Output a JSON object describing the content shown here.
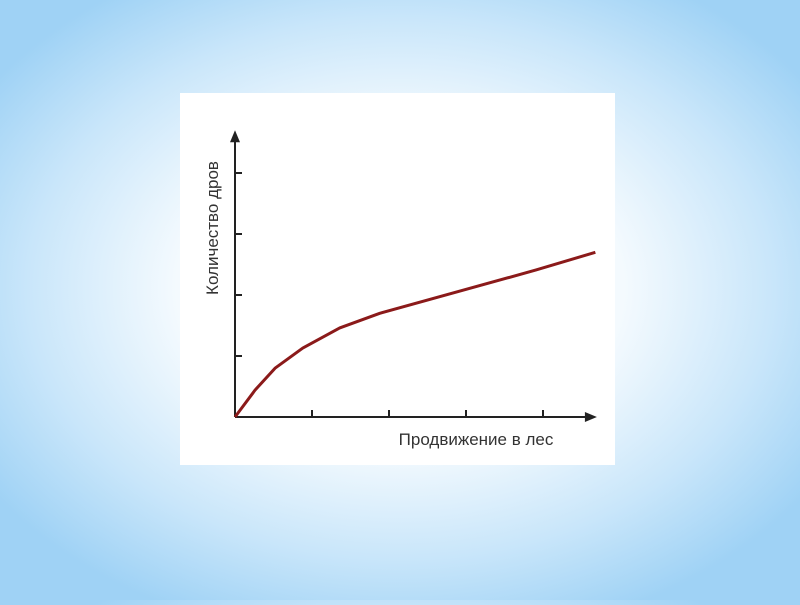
{
  "chart_data": {
    "type": "line",
    "x_label": "Продвижение в лес",
    "y_label": "Количество дров",
    "x": [
      0,
      0.26,
      0.52,
      0.88,
      1.36,
      1.88,
      2.88,
      3.91,
      4.68
    ],
    "series": [
      {
        "color": "#8b1a1a",
        "values": [
          0,
          0.44,
          0.8,
          1.13,
          1.46,
          1.7,
          2.05,
          2.41,
          2.7
        ]
      }
    ],
    "xlim": [
      0,
      4.7
    ],
    "ylim": [
      0,
      4.7
    ],
    "xticks": [
      1,
      2,
      3,
      4
    ],
    "yticks": [
      1,
      2,
      3,
      4
    ]
  }
}
